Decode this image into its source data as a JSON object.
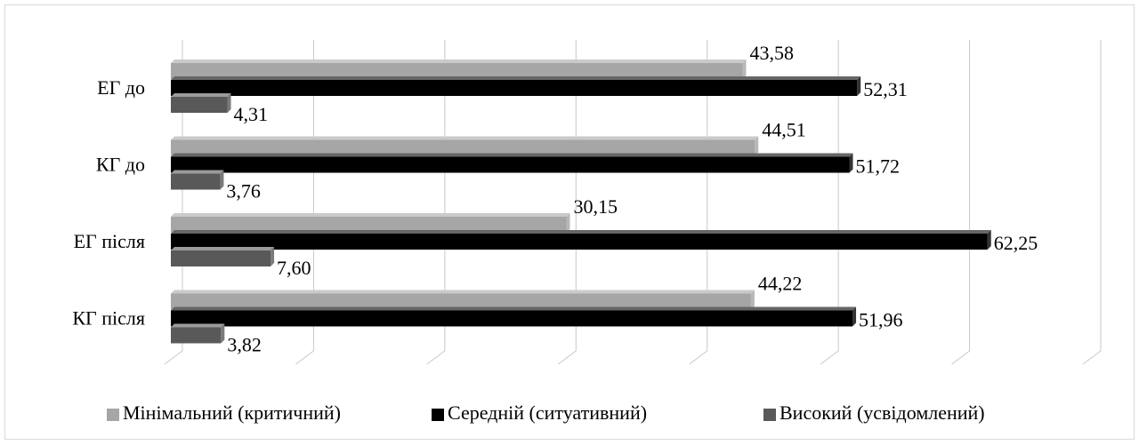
{
  "chart_data": {
    "type": "bar",
    "orientation": "horizontal",
    "categories": [
      "ЕГ до",
      "КГ до",
      "ЕГ після",
      "КГ після"
    ],
    "series": [
      {
        "name": "Мінімальний (критичний)",
        "color": "#a6a6a6",
        "values": [
          43.58,
          44.51,
          30.15,
          44.22
        ],
        "value_labels": [
          "43,58",
          "44,51",
          "30,15",
          "44,22"
        ]
      },
      {
        "name": "Середній (ситуативний)",
        "color": "#000000",
        "values": [
          52.31,
          51.72,
          62.25,
          51.96
        ],
        "value_labels": [
          "52,31",
          "51,72",
          "62,25",
          "51,96"
        ]
      },
      {
        "name": "Високий (усвідомлений)",
        "color": "#595959",
        "values": [
          4.31,
          3.76,
          7.6,
          3.82
        ],
        "value_labels": [
          "4,31",
          "3,76",
          "7,60",
          "3,82"
        ]
      }
    ],
    "xlim": [
      0,
      70
    ],
    "xticks": [
      0,
      10,
      20,
      30,
      40,
      50,
      60,
      70
    ],
    "grid": true,
    "legend": "bottom"
  }
}
